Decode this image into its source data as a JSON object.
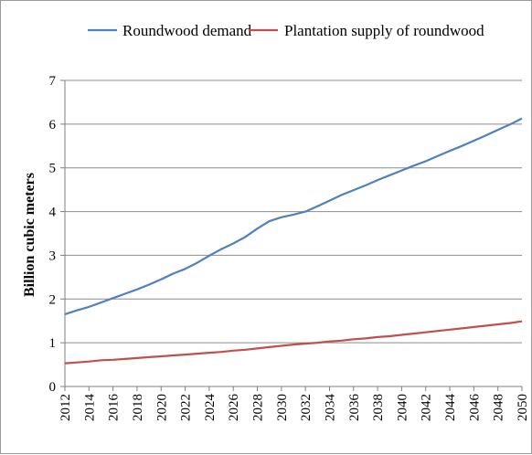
{
  "chart_data": {
    "type": "line",
    "title": "",
    "xlabel": "",
    "ylabel": "Billion cubic meters",
    "ylim": [
      0,
      7
    ],
    "yticks": [
      "0",
      "1",
      "2",
      "3",
      "4",
      "5",
      "6",
      "7"
    ],
    "xlim": [
      2012,
      2050
    ],
    "xticks": [
      "2012",
      "2014",
      "2016",
      "2018",
      "2020",
      "2022",
      "2024",
      "2026",
      "2028",
      "2030",
      "2032",
      "2034",
      "2036",
      "2038",
      "2040",
      "2042",
      "2044",
      "2046",
      "2048",
      "2050"
    ],
    "grid": true,
    "legend_position": "top",
    "series": [
      {
        "name": "Roundwood demand",
        "color": "#4f81bd",
        "x": [
          2012,
          2013,
          2014,
          2015,
          2016,
          2017,
          2018,
          2019,
          2020,
          2021,
          2022,
          2023,
          2024,
          2025,
          2026,
          2027,
          2028,
          2029,
          2030,
          2031,
          2032,
          2033,
          2034,
          2035,
          2036,
          2037,
          2038,
          2039,
          2040,
          2041,
          2042,
          2043,
          2044,
          2045,
          2046,
          2047,
          2048,
          2049,
          2050
        ],
        "values": [
          1.65,
          1.74,
          1.82,
          1.92,
          2.02,
          2.12,
          2.22,
          2.33,
          2.45,
          2.58,
          2.69,
          2.83,
          2.99,
          3.14,
          3.27,
          3.42,
          3.61,
          3.78,
          3.87,
          3.93,
          4.0,
          4.12,
          4.25,
          4.38,
          4.49,
          4.6,
          4.72,
          4.83,
          4.94,
          5.05,
          5.15,
          5.27,
          5.39,
          5.5,
          5.62,
          5.74,
          5.87,
          5.99,
          6.13
        ]
      },
      {
        "name": "Plantation supply of roundwood",
        "color": "#c0504d",
        "x": [
          2012,
          2013,
          2014,
          2015,
          2016,
          2017,
          2018,
          2019,
          2020,
          2021,
          2022,
          2023,
          2024,
          2025,
          2026,
          2027,
          2028,
          2029,
          2030,
          2031,
          2032,
          2033,
          2034,
          2035,
          2036,
          2037,
          2038,
          2039,
          2040,
          2041,
          2042,
          2043,
          2044,
          2045,
          2046,
          2047,
          2048,
          2049,
          2050
        ],
        "values": [
          0.53,
          0.55,
          0.57,
          0.6,
          0.61,
          0.63,
          0.65,
          0.67,
          0.69,
          0.71,
          0.73,
          0.75,
          0.77,
          0.79,
          0.82,
          0.84,
          0.87,
          0.9,
          0.93,
          0.96,
          0.98,
          1.0,
          1.03,
          1.05,
          1.08,
          1.1,
          1.13,
          1.15,
          1.18,
          1.21,
          1.24,
          1.27,
          1.3,
          1.33,
          1.36,
          1.39,
          1.42,
          1.45,
          1.49
        ]
      }
    ]
  }
}
